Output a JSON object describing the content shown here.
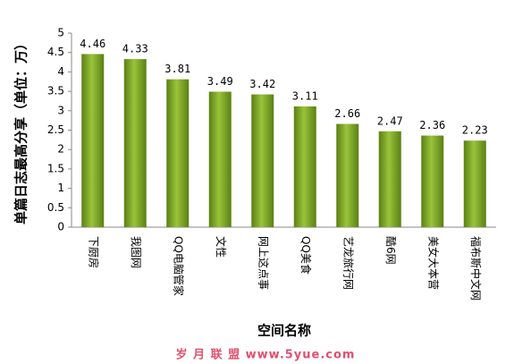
{
  "chart_data": {
    "type": "bar",
    "x_label": "空间名称",
    "y_label": "单篇日志最高分享（单位：万）",
    "watermark": "岁 月 联 盟   www.5yue.com",
    "categories": [
      "下厨房",
      "我图网",
      "QQ电脑管家",
      "文性",
      "网上这点事",
      "QQ美食",
      "艺龙旅行网",
      "酷6网",
      "美女大本营",
      "福布斯中文网"
    ],
    "values": [
      4.46,
      4.33,
      3.81,
      3.49,
      3.42,
      3.11,
      2.66,
      2.47,
      2.36,
      2.23
    ],
    "color": "#99c43a",
    "ylim": [
      0,
      5
    ],
    "yticks": [
      0,
      0.5,
      1,
      1.5,
      2,
      2.5,
      3,
      3.5,
      4,
      4.5,
      5
    ],
    "grid": false
  }
}
